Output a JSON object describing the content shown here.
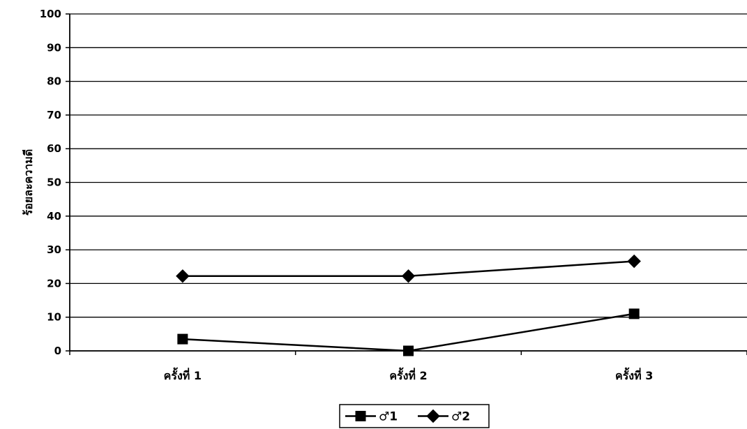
{
  "chart_data": {
    "type": "line",
    "categories": [
      "ครั้งที่ 1",
      "ครั้งที่ 2",
      "ครั้งที่ 3"
    ],
    "series": [
      {
        "name": "♂1",
        "marker": "square",
        "values": [
          3.5,
          0,
          11
        ]
      },
      {
        "name": "♂2",
        "marker": "diamond",
        "values": [
          22.2,
          22.2,
          26.6
        ]
      }
    ],
    "title": "",
    "xlabel": "",
    "ylabel": "ร้อยละความดี",
    "ylim": [
      0,
      100
    ],
    "yticks": [
      0,
      10,
      20,
      30,
      40,
      50,
      60,
      70,
      80,
      90,
      100
    ],
    "grid": true,
    "legend_position": "bottom-center",
    "line_color": "#000000"
  }
}
